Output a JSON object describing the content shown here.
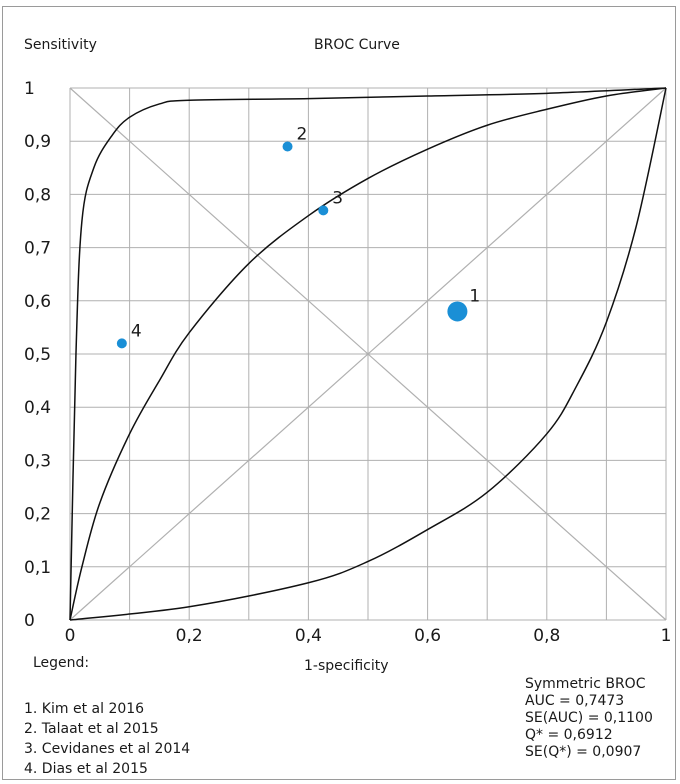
{
  "chart_data": {
    "type": "scatter",
    "title": "BROC Curve",
    "xlabel": "1-specificity",
    "ylabel": "Sensitivity",
    "xlim": [
      0,
      1
    ],
    "ylim": [
      0,
      1
    ],
    "grid": true,
    "x_ticks": [
      "0",
      "0,2",
      "0,4",
      "0,6",
      "0,8",
      "1"
    ],
    "y_ticks": [
      "0",
      "0,1",
      "0,2",
      "0,3",
      "0,4",
      "0,5",
      "0,6",
      "0,7",
      "0,8",
      "0,9",
      "1"
    ],
    "points": [
      {
        "label": "1",
        "x": 0.65,
        "y": 0.58,
        "size": "large"
      },
      {
        "label": "2",
        "x": 0.365,
        "y": 0.89,
        "size": "small"
      },
      {
        "label": "3",
        "x": 0.425,
        "y": 0.77,
        "size": "small"
      },
      {
        "label": "4",
        "x": 0.087,
        "y": 0.52,
        "size": "small"
      }
    ],
    "curves": {
      "upper": [
        [
          0,
          0
        ],
        [
          0.01,
          0.5
        ],
        [
          0.02,
          0.75
        ],
        [
          0.04,
          0.85
        ],
        [
          0.07,
          0.91
        ],
        [
          0.1,
          0.945
        ],
        [
          0.15,
          0.97
        ],
        [
          0.2,
          0.977
        ],
        [
          0.4,
          0.98
        ],
        [
          0.6,
          0.985
        ],
        [
          0.8,
          0.99
        ],
        [
          1,
          1
        ]
      ],
      "middle": [
        [
          0,
          0
        ],
        [
          0.02,
          0.1
        ],
        [
          0.05,
          0.22
        ],
        [
          0.1,
          0.35
        ],
        [
          0.15,
          0.45
        ],
        [
          0.2,
          0.54
        ],
        [
          0.3,
          0.67
        ],
        [
          0.4,
          0.76
        ],
        [
          0.5,
          0.83
        ],
        [
          0.6,
          0.885
        ],
        [
          0.7,
          0.93
        ],
        [
          0.8,
          0.96
        ],
        [
          0.9,
          0.985
        ],
        [
          1,
          1
        ]
      ],
      "lower": [
        [
          0,
          0
        ],
        [
          0.2,
          0.025
        ],
        [
          0.4,
          0.07
        ],
        [
          0.5,
          0.11
        ],
        [
          0.6,
          0.17
        ],
        [
          0.7,
          0.24
        ],
        [
          0.8,
          0.35
        ],
        [
          0.85,
          0.44
        ],
        [
          0.9,
          0.56
        ],
        [
          0.95,
          0.74
        ],
        [
          1,
          1
        ]
      ]
    },
    "diagonals": true
  },
  "legend": {
    "title": "Legend:",
    "items": [
      "1. Kim et al 2016",
      "2. Talaat et al 2015",
      "3. Cevidanes et al 2014",
      "4. Dias et al 2015"
    ]
  },
  "stats": [
    "Symmetric BROC",
    "AUC = 0,7473",
    "SE(AUC) = 0,1100",
    "Q* = 0,6912",
    "SE(Q*) = 0,0907"
  ],
  "colors": {
    "grid": "#b0b0b0",
    "curve": "#111111",
    "point": "#1a8fd6"
  }
}
